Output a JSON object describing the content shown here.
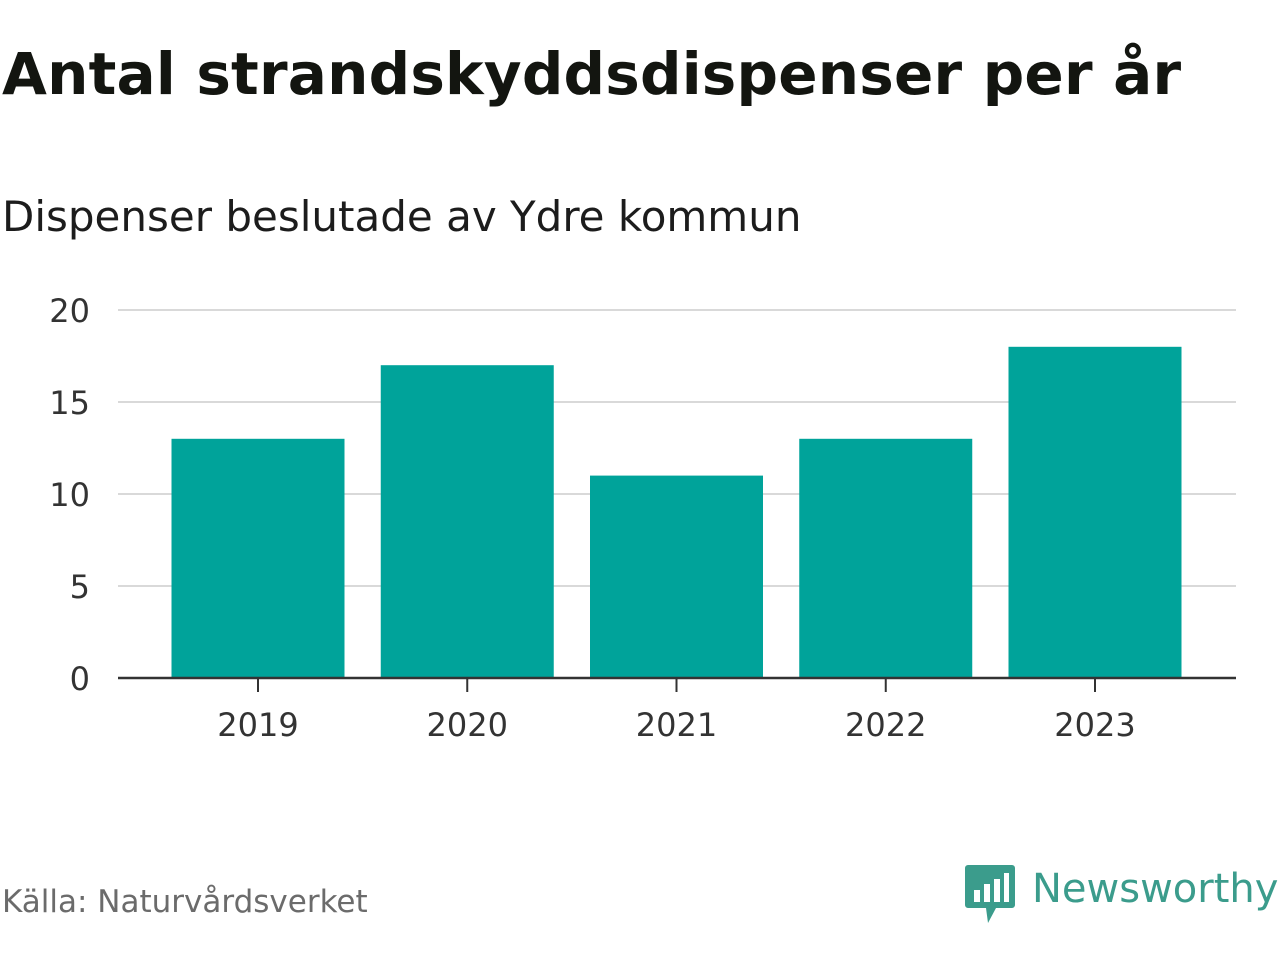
{
  "title": "Antal strandskyddsdispenser per år",
  "subtitle": "Dispenser beslutade av Ydre kommun",
  "source": "Källa: Naturvårdsverket",
  "brand": {
    "name": "Newsworthy",
    "icon": "bar-chart-speech-bubble-icon",
    "color": "#3b9c8c"
  },
  "colors": {
    "bar": "#00a39a",
    "grid": "#d9d9d9",
    "axis": "#333333",
    "tick_text": "#333333"
  },
  "chart_data": {
    "type": "bar",
    "title": "Antal strandskyddsdispenser per år",
    "subtitle": "Dispenser beslutade av Ydre kommun",
    "categories": [
      "2019",
      "2020",
      "2021",
      "2022",
      "2023"
    ],
    "values": [
      13,
      17,
      11,
      13,
      18
    ],
    "ylim": [
      0,
      20
    ],
    "yticks": [
      0,
      5,
      10,
      15,
      20
    ],
    "xlabel": "",
    "ylabel": "",
    "grid": true,
    "legend": "none"
  }
}
